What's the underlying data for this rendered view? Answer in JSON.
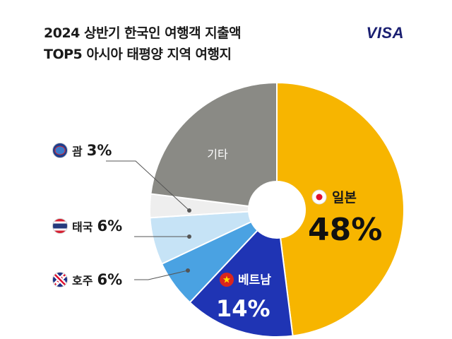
{
  "title": {
    "line1": "2024 상반기 한국인 여행객 지출액",
    "line2": "TOP5 아시아 태평양 지역 여행지"
  },
  "brand": "VISA",
  "chart_data": {
    "type": "pie",
    "style": "donut",
    "title": "2024 상반기 한국인 여행객 지출액 TOP5 아시아 태평양 지역 여행지",
    "slices": [
      {
        "label": "일본",
        "value": 48,
        "display": "48%",
        "color": "#f7b500",
        "flag": "japan-flag-icon"
      },
      {
        "label": "베트남",
        "value": 14,
        "display": "14%",
        "color": "#1f34b4",
        "flag": "vietnam-flag-icon"
      },
      {
        "label": "호주",
        "value": 6,
        "display": "6%",
        "color": "#4aa2e2",
        "flag": "australia-flag-icon"
      },
      {
        "label": "태국",
        "value": 6,
        "display": "6%",
        "color": "#c6e3f6",
        "flag": "thailand-flag-icon"
      },
      {
        "label": "괌",
        "value": 3,
        "display": "3%",
        "color": "#eeeeee",
        "flag": "guam-flag-icon"
      },
      {
        "label": "기타",
        "value": 23,
        "display": "",
        "color": "#8a8a85"
      }
    ]
  },
  "labels": {
    "japan": {
      "name": "일본",
      "pct": "48%"
    },
    "vietnam": {
      "name": "베트남",
      "pct": "14%"
    },
    "australia": {
      "name": "호주",
      "pct": "6%"
    },
    "thailand": {
      "name": "태국",
      "pct": "6%"
    },
    "guam": {
      "name": "괌",
      "pct": "3%"
    },
    "other": {
      "name": "기타"
    }
  }
}
